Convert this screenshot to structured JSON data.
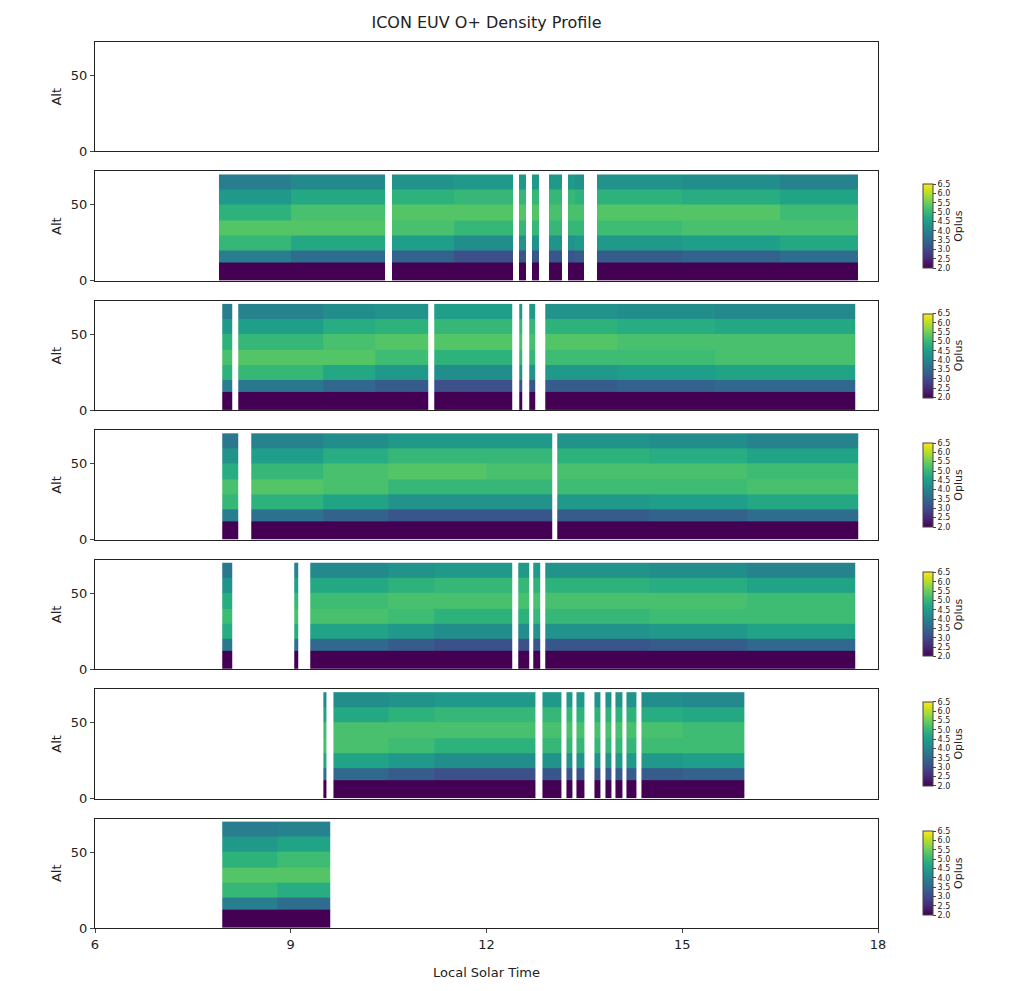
{
  "chart_data": {
    "type": "heatmap",
    "title": "ICON EUV O+ Density Profile",
    "xlabel": "Local Solar Time",
    "ylabel": "Alt",
    "colorbar_title": "Oplus",
    "xlim": [
      6,
      18
    ],
    "xticks": [
      6,
      9,
      12,
      15,
      18
    ],
    "ylim": [
      0,
      72
    ],
    "yticks": [
      0,
      50
    ],
    "y": [
      0,
      12,
      20,
      30,
      40,
      50,
      60,
      70
    ],
    "zlim": [
      2,
      6.5
    ],
    "zticks": [
      {
        "value": 2,
        "label": "2.0"
      },
      {
        "value": 2.5,
        "label": "2.5"
      },
      {
        "value": 3,
        "label": "3.0"
      },
      {
        "value": 3.5,
        "label": "3.5"
      },
      {
        "value": 4,
        "label": "4.0"
      },
      {
        "value": 4.5,
        "label": "4.5"
      },
      {
        "value": 5,
        "label": "5.0"
      },
      {
        "value": 5.5,
        "label": "5.5"
      },
      {
        "value": 6,
        "label": "6.0"
      },
      {
        "value": 6.5,
        "label": "6.5"
      }
    ],
    "panels": [
      {
        "x": [],
        "columns": []
      },
      {
        "x": [
          7.9,
          9,
          10.45,
          10.55,
          11.5,
          12.4,
          12.5,
          12.6,
          12.7,
          12.8,
          12.95,
          13.15,
          13.25,
          13.35,
          13.5,
          13.7,
          15,
          16.5,
          17.7
        ],
        "columns": [
          [
            2.0,
            3.9,
            5.0,
            5.3,
            4.9,
            4.4,
            3.9
          ],
          [
            2.0,
            3.6,
            4.7,
            5.3,
            5.2,
            4.7,
            4.1
          ],
          null,
          [
            2.0,
            3.4,
            4.5,
            5.2,
            5.3,
            4.9,
            4.3
          ],
          [
            2.0,
            3.1,
            4.2,
            5.0,
            5.3,
            5.0,
            4.4
          ],
          null,
          [
            2.0,
            3.2,
            4.3,
            5.0,
            5.3,
            5.0,
            4.4
          ],
          null,
          [
            2.0,
            3.2,
            4.3,
            5.0,
            5.3,
            5.0,
            4.4
          ],
          null,
          [
            2.0,
            3.2,
            4.3,
            5.0,
            5.2,
            5.0,
            4.4
          ],
          null,
          [
            2.0,
            3.2,
            4.3,
            5.0,
            5.2,
            5.0,
            4.4
          ],
          [
            2.0,
            3.3,
            4.4,
            5.0,
            5.2,
            4.9,
            4.3
          ],
          null,
          [
            2.0,
            3.3,
            4.4,
            5.1,
            5.3,
            4.9,
            4.3
          ],
          [
            2.0,
            3.4,
            4.5,
            5.2,
            5.3,
            4.8,
            4.2
          ],
          [
            2.0,
            3.6,
            4.7,
            5.2,
            5.1,
            4.6,
            4.0
          ]
        ]
      },
      {
        "x": [
          7.95,
          8.1,
          8.2,
          9.5,
          10.3,
          11.1,
          11.2,
          12.4,
          12.5,
          12.55,
          12.65,
          12.75,
          12.9,
          14,
          15.5,
          17.65
        ],
        "columns": [
          [
            2.0,
            3.9,
            4.9,
            5.2,
            4.9,
            4.4,
            3.9
          ],
          null,
          [
            2.0,
            3.8,
            5.0,
            5.3,
            5.0,
            4.5,
            4.0
          ],
          [
            2.0,
            3.5,
            4.7,
            5.3,
            5.2,
            4.8,
            4.2
          ],
          [
            2.0,
            3.3,
            4.4,
            5.1,
            5.3,
            4.9,
            4.3
          ],
          null,
          [
            2.0,
            3.1,
            4.2,
            4.9,
            5.3,
            5.0,
            4.5
          ],
          null,
          [
            2.0,
            3.2,
            4.3,
            5.0,
            5.2,
            5.0,
            4.4
          ],
          null,
          [
            2.0,
            3.2,
            4.3,
            5.0,
            5.2,
            5.0,
            4.4
          ],
          null,
          [
            2.0,
            3.3,
            4.4,
            5.1,
            5.3,
            4.9,
            4.3
          ],
          [
            2.0,
            3.4,
            4.5,
            5.1,
            5.2,
            4.8,
            4.2
          ],
          [
            2.0,
            3.5,
            4.6,
            5.2,
            5.2,
            4.7,
            4.1
          ]
        ]
      },
      {
        "x": [
          7.95,
          8.2,
          8.4,
          9.5,
          10.5,
          12,
          13,
          13.08,
          14.5,
          16,
          17.7
        ],
        "columns": [
          [
            2.0,
            3.9,
            5.0,
            5.2,
            4.8,
            4.3,
            3.8
          ],
          null,
          [
            2.0,
            3.7,
            4.9,
            5.3,
            5.0,
            4.5,
            4.0
          ],
          [
            2.0,
            3.4,
            4.6,
            5.2,
            5.2,
            4.8,
            4.2
          ],
          [
            2.0,
            3.2,
            4.3,
            5.0,
            5.3,
            5.0,
            4.4
          ],
          [
            2.0,
            3.2,
            4.3,
            5.0,
            5.2,
            5.0,
            4.4
          ],
          null,
          [
            2.0,
            3.3,
            4.4,
            5.1,
            5.2,
            4.9,
            4.3
          ],
          [
            2.0,
            3.4,
            4.5,
            5.1,
            5.2,
            4.8,
            4.2
          ],
          [
            2.0,
            3.6,
            4.7,
            5.2,
            5.1,
            4.6,
            4.0
          ]
        ]
      },
      {
        "x": [
          7.95,
          8.1,
          9.05,
          9.12,
          9.3,
          10.5,
          11.2,
          12.4,
          12.48,
          12.65,
          12.72,
          12.82,
          12.9,
          14.5,
          16,
          17.65
        ],
        "columns": [
          [
            2.0,
            3.8,
            4.8,
            5.1,
            4.8,
            4.3,
            3.8
          ],
          null,
          [
            2.0,
            3.7,
            4.8,
            5.2,
            5.0,
            4.5,
            4.0
          ],
          null,
          [
            2.0,
            3.5,
            4.6,
            5.2,
            5.1,
            4.7,
            4.1
          ],
          [
            2.0,
            3.3,
            4.4,
            5.1,
            5.2,
            4.9,
            4.3
          ],
          [
            2.0,
            3.1,
            4.2,
            4.9,
            5.2,
            5.0,
            4.4
          ],
          null,
          [
            2.0,
            3.1,
            4.2,
            4.9,
            5.2,
            5.0,
            4.4
          ],
          null,
          [
            2.0,
            3.2,
            4.3,
            5.0,
            5.2,
            4.9,
            4.4
          ],
          null,
          [
            2.0,
            3.2,
            4.3,
            5.0,
            5.2,
            4.9,
            4.3
          ],
          [
            2.0,
            3.3,
            4.4,
            5.1,
            5.2,
            4.8,
            4.2
          ],
          [
            2.0,
            3.5,
            4.6,
            5.1,
            5.1,
            4.6,
            4.0
          ]
        ]
      },
      {
        "x": [
          9.5,
          9.55,
          9.65,
          10.5,
          11.2,
          12.75,
          12.85,
          13.15,
          13.22,
          13.32,
          13.38,
          13.5,
          13.65,
          13.75,
          13.82,
          13.92,
          13.98,
          14.08,
          14.14,
          14.3,
          14.38,
          15,
          15.95
        ],
        "columns": [
          [
            2.0,
            3.6,
            4.7,
            5.2,
            5.1,
            4.6,
            4.1
          ],
          null,
          [
            2.0,
            3.5,
            4.6,
            5.2,
            5.2,
            4.7,
            4.2
          ],
          [
            2.0,
            3.3,
            4.4,
            5.1,
            5.2,
            4.9,
            4.3
          ],
          [
            2.0,
            3.1,
            4.2,
            4.9,
            5.2,
            5.0,
            4.4
          ],
          null,
          [
            2.0,
            3.2,
            4.3,
            5.0,
            5.2,
            5.0,
            4.4
          ],
          null,
          [
            2.0,
            3.2,
            4.3,
            5.0,
            5.2,
            5.0,
            4.4
          ],
          null,
          [
            2.0,
            3.2,
            4.3,
            5.0,
            5.2,
            4.9,
            4.4
          ],
          null,
          [
            2.0,
            3.2,
            4.3,
            5.0,
            5.2,
            4.9,
            4.3
          ],
          null,
          [
            2.0,
            3.2,
            4.3,
            5.0,
            5.2,
            4.9,
            4.3
          ],
          null,
          [
            2.0,
            3.3,
            4.4,
            5.0,
            5.2,
            4.9,
            4.3
          ],
          null,
          [
            2.0,
            3.3,
            4.4,
            5.0,
            5.2,
            4.9,
            4.3
          ],
          null,
          [
            2.0,
            3.3,
            4.4,
            5.1,
            5.2,
            4.8,
            4.2
          ],
          [
            2.0,
            3.4,
            4.5,
            5.1,
            5.1,
            4.7,
            4.1
          ]
        ]
      },
      {
        "x": [
          7.95,
          8.8,
          9.6
        ],
        "columns": [
          [
            2.0,
            3.9,
            5.0,
            5.3,
            4.9,
            4.4,
            3.9
          ],
          [
            2.0,
            3.6,
            4.8,
            5.3,
            5.1,
            4.6,
            4.0
          ]
        ]
      }
    ]
  }
}
